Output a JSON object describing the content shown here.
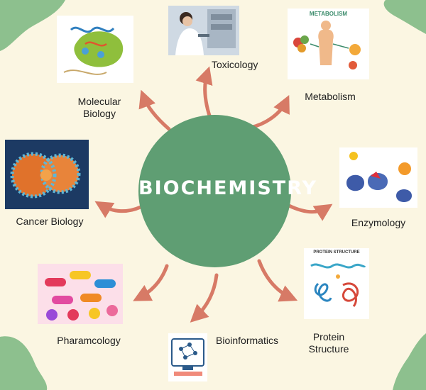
{
  "center": {
    "title": "BIOCHEMISTRY"
  },
  "topics": {
    "toxicology": "Toxicology",
    "metabolism": "Metabolism",
    "molecular_biology_line1": "Molecular",
    "molecular_biology_line2": "Biology",
    "cancer_biology": "Cancer Biology",
    "enzymology": "Enzymology",
    "pharmacology": "Pharamcology",
    "bioinformatics": "Bioinformatics",
    "protein_structure_line1": "Protein",
    "protein_structure_line2": "Structure"
  },
  "thumbnails": {
    "metabolism_title": "METABOLISM",
    "protein_structure_title": "PROTEIN STRUCTURE"
  },
  "colors": {
    "background": "#fbf6e2",
    "corner_blob": "#8dc08e",
    "center_circle": "#5f9e73",
    "arrow": "#d77a66"
  }
}
